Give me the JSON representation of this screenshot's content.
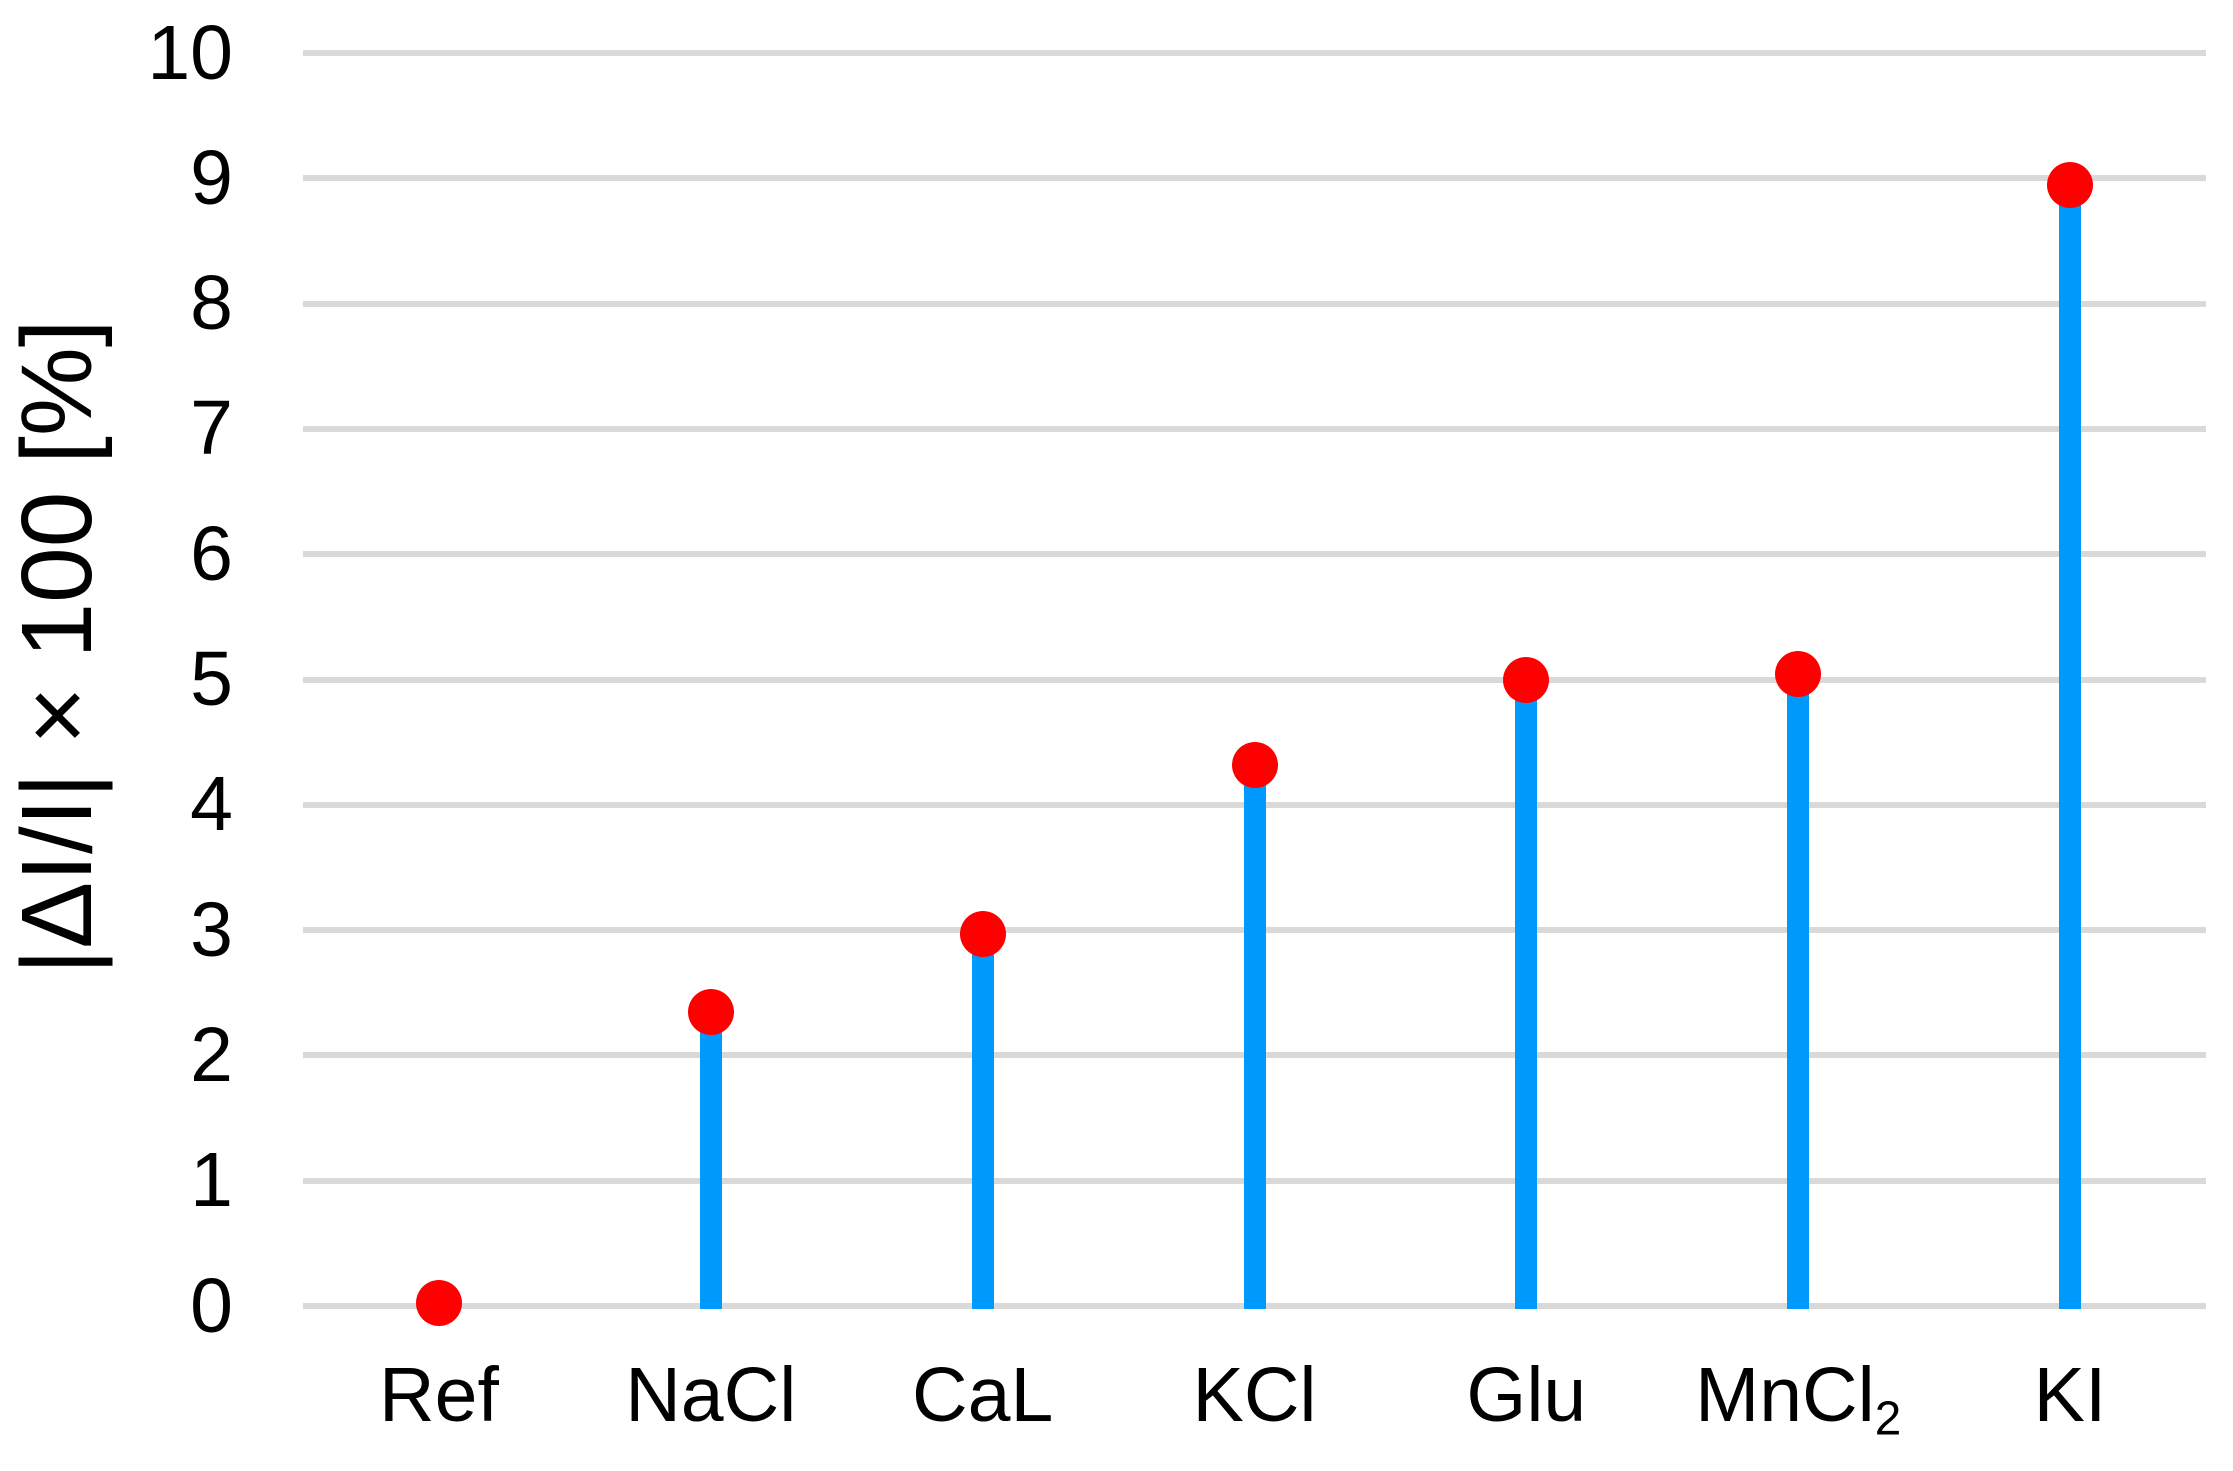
{
  "chart_data": {
    "type": "bar",
    "variant": "lollipop-stem-with-circle-markers",
    "title": "",
    "xlabel": "",
    "ylabel": "|ΔI/I| × 100 [%]",
    "ylim": [
      0,
      10
    ],
    "yticks": [
      "0",
      "1",
      "2",
      "3",
      "4",
      "5",
      "6",
      "7",
      "8",
      "9",
      "10"
    ],
    "grid": "horizontal",
    "legend_position": "none",
    "categories": [
      {
        "label": "Ref",
        "sub": ""
      },
      {
        "label": "NaCl",
        "sub": ""
      },
      {
        "label": "CaL",
        "sub": ""
      },
      {
        "label": "KCl",
        "sub": ""
      },
      {
        "label": "Glu",
        "sub": ""
      },
      {
        "label": "MnCl",
        "sub": "2"
      },
      {
        "label": "KI",
        "sub": ""
      }
    ],
    "values": [
      0.02,
      2.35,
      2.97,
      4.32,
      5.0,
      5.04,
      8.95
    ],
    "colors": {
      "stem": "#0099FC",
      "marker": "#FF0000",
      "gridline": "#D9D9D9",
      "text": "#000000",
      "background": "#FFFFFF"
    }
  }
}
